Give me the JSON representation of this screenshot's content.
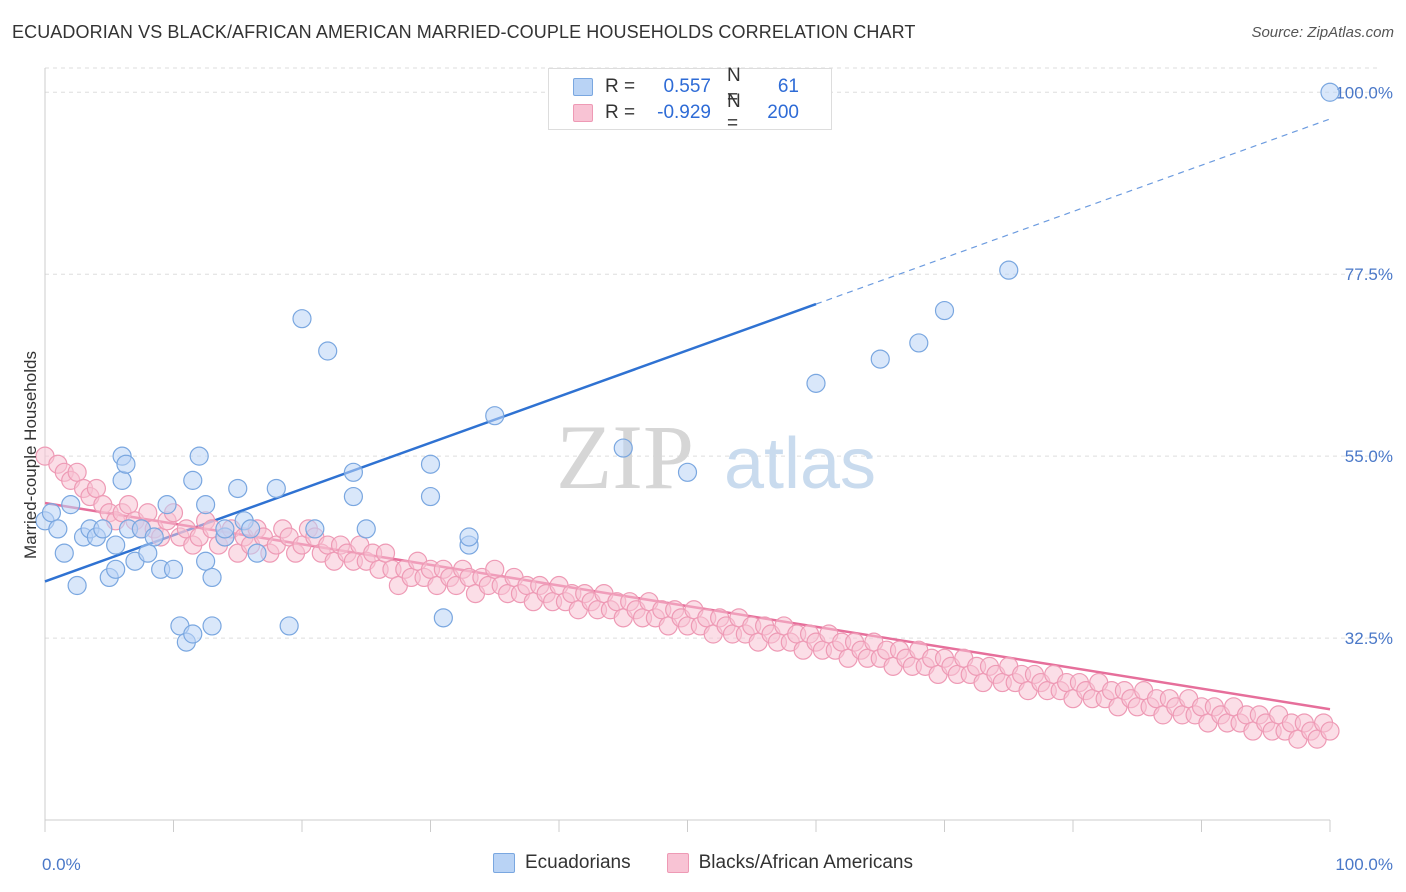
{
  "title": "ECUADORIAN VS BLACK/AFRICAN AMERICAN MARRIED-COUPLE HOUSEHOLDS CORRELATION CHART",
  "source": "Source: ZipAtlas.com",
  "watermark": {
    "zip": "ZIP",
    "atlas": "atlas"
  },
  "colors": {
    "blue_fill": "#b9d3f5",
    "blue_stroke": "#7aa7e0",
    "blue_line": "#2f72d2",
    "pink_fill": "#f8c3d4",
    "pink_stroke": "#ee9ab5",
    "pink_line": "#e66f9b",
    "grid": "#dddddd",
    "tick_text": "#4a78c8"
  },
  "legend": {
    "rows": [
      {
        "r_label": "R =",
        "r_value": "0.557",
        "n_label": "N =",
        "n_value": "61"
      },
      {
        "r_label": "R =",
        "r_value": "-0.929",
        "n_label": "N =",
        "n_value": "200"
      }
    ]
  },
  "bottom_legend": [
    "Ecuadorians",
    "Blacks/African Americans"
  ],
  "chart_data": {
    "type": "scatter",
    "title": "ECUADORIAN VS BLACK/AFRICAN AMERICAN MARRIED-COUPLE HOUSEHOLDS CORRELATION CHART",
    "xlabel": "",
    "ylabel": "Married-couple Households",
    "xlim": [
      0,
      100
    ],
    "ylim": [
      10,
      103
    ],
    "y_ticks": [
      32.5,
      55.0,
      77.5,
      100.0
    ],
    "y_tick_labels": [
      "32.5%",
      "55.0%",
      "77.5%",
      "100.0%"
    ],
    "x_tick_labels": [
      "0.0%",
      "100.0%"
    ],
    "grid": true,
    "legend_position": "top-center",
    "series": [
      {
        "name": "Ecuadorians",
        "points": [
          [
            0,
            47
          ],
          [
            0.5,
            48
          ],
          [
            1,
            46
          ],
          [
            1.5,
            43
          ],
          [
            2,
            49
          ],
          [
            2.5,
            39
          ],
          [
            3,
            45
          ],
          [
            3.5,
            46
          ],
          [
            4,
            45
          ],
          [
            4.5,
            46
          ],
          [
            5,
            40
          ],
          [
            5.5,
            41
          ],
          [
            5.5,
            44
          ],
          [
            6,
            55
          ],
          [
            6,
            52
          ],
          [
            6.3,
            54
          ],
          [
            6.5,
            46
          ],
          [
            7,
            42
          ],
          [
            7.5,
            46
          ],
          [
            8,
            43
          ],
          [
            8.5,
            45
          ],
          [
            9,
            41
          ],
          [
            9.5,
            49
          ],
          [
            10,
            41
          ],
          [
            10.5,
            34
          ],
          [
            11,
            32
          ],
          [
            11.5,
            33
          ],
          [
            11.5,
            52
          ],
          [
            12,
            55
          ],
          [
            12.5,
            49
          ],
          [
            12.5,
            42
          ],
          [
            13,
            40
          ],
          [
            13,
            34
          ],
          [
            14,
            45
          ],
          [
            14,
            46
          ],
          [
            15,
            51
          ],
          [
            15.5,
            47
          ],
          [
            16,
            46
          ],
          [
            16.5,
            43
          ],
          [
            18,
            51
          ],
          [
            19,
            34
          ],
          [
            20,
            72
          ],
          [
            21,
            46
          ],
          [
            22,
            68
          ],
          [
            24,
            50
          ],
          [
            24,
            53
          ],
          [
            25,
            46
          ],
          [
            30,
            50
          ],
          [
            30,
            54
          ],
          [
            31,
            35
          ],
          [
            33,
            44
          ],
          [
            33,
            45
          ],
          [
            35,
            60
          ],
          [
            45,
            56
          ],
          [
            50,
            53
          ],
          [
            60,
            64
          ],
          [
            65,
            67
          ],
          [
            68,
            69
          ],
          [
            70,
            73
          ],
          [
            75,
            78
          ],
          [
            100,
            100
          ]
        ]
      },
      {
        "name": "Blacks/African Americans",
        "points": [
          [
            0,
            55
          ],
          [
            1,
            54
          ],
          [
            1.5,
            53
          ],
          [
            2,
            52
          ],
          [
            2.5,
            53
          ],
          [
            3,
            51
          ],
          [
            3.5,
            50
          ],
          [
            4,
            51
          ],
          [
            4.5,
            49
          ],
          [
            5,
            48
          ],
          [
            5.5,
            47
          ],
          [
            6,
            48
          ],
          [
            6.5,
            49
          ],
          [
            7,
            47
          ],
          [
            7.5,
            46
          ],
          [
            8,
            48
          ],
          [
            8.5,
            46
          ],
          [
            9,
            45
          ],
          [
            9.5,
            47
          ],
          [
            10,
            48
          ],
          [
            10.5,
            45
          ],
          [
            11,
            46
          ],
          [
            11.5,
            44
          ],
          [
            12,
            45
          ],
          [
            12.5,
            47
          ],
          [
            13,
            46
          ],
          [
            13.5,
            44
          ],
          [
            14,
            45
          ],
          [
            14.5,
            46
          ],
          [
            15,
            43
          ],
          [
            15.5,
            45
          ],
          [
            16,
            44
          ],
          [
            16.5,
            46
          ],
          [
            17,
            45
          ],
          [
            17.5,
            43
          ],
          [
            18,
            44
          ],
          [
            18.5,
            46
          ],
          [
            19,
            45
          ],
          [
            19.5,
            43
          ],
          [
            20,
            44
          ],
          [
            20.5,
            46
          ],
          [
            21,
            45
          ],
          [
            21.5,
            43
          ],
          [
            22,
            44
          ],
          [
            22.5,
            42
          ],
          [
            23,
            44
          ],
          [
            23.5,
            43
          ],
          [
            24,
            42
          ],
          [
            24.5,
            44
          ],
          [
            25,
            42
          ],
          [
            25.5,
            43
          ],
          [
            26,
            41
          ],
          [
            26.5,
            43
          ],
          [
            27,
            41
          ],
          [
            27.5,
            39
          ],
          [
            28,
            41
          ],
          [
            28.5,
            40
          ],
          [
            29,
            42
          ],
          [
            29.5,
            40
          ],
          [
            30,
            41
          ],
          [
            30.5,
            39
          ],
          [
            31,
            41
          ],
          [
            31.5,
            40
          ],
          [
            32,
            39
          ],
          [
            32.5,
            41
          ],
          [
            33,
            40
          ],
          [
            33.5,
            38
          ],
          [
            34,
            40
          ],
          [
            34.5,
            39
          ],
          [
            35,
            41
          ],
          [
            35.5,
            39
          ],
          [
            36,
            38
          ],
          [
            36.5,
            40
          ],
          [
            37,
            38
          ],
          [
            37.5,
            39
          ],
          [
            38,
            37
          ],
          [
            38.5,
            39
          ],
          [
            39,
            38
          ],
          [
            39.5,
            37
          ],
          [
            40,
            39
          ],
          [
            40.5,
            37
          ],
          [
            41,
            38
          ],
          [
            41.5,
            36
          ],
          [
            42,
            38
          ],
          [
            42.5,
            37
          ],
          [
            43,
            36
          ],
          [
            43.5,
            38
          ],
          [
            44,
            36
          ],
          [
            44.5,
            37
          ],
          [
            45,
            35
          ],
          [
            45.5,
            37
          ],
          [
            46,
            36
          ],
          [
            46.5,
            35
          ],
          [
            47,
            37
          ],
          [
            47.5,
            35
          ],
          [
            48,
            36
          ],
          [
            48.5,
            34
          ],
          [
            49,
            36
          ],
          [
            49.5,
            35
          ],
          [
            50,
            34
          ],
          [
            50.5,
            36
          ],
          [
            51,
            34
          ],
          [
            51.5,
            35
          ],
          [
            52,
            33
          ],
          [
            52.5,
            35
          ],
          [
            53,
            34
          ],
          [
            53.5,
            33
          ],
          [
            54,
            35
          ],
          [
            54.5,
            33
          ],
          [
            55,
            34
          ],
          [
            55.5,
            32
          ],
          [
            56,
            34
          ],
          [
            56.5,
            33
          ],
          [
            57,
            32
          ],
          [
            57.5,
            34
          ],
          [
            58,
            32
          ],
          [
            58.5,
            33
          ],
          [
            59,
            31
          ],
          [
            59.5,
            33
          ],
          [
            60,
            32
          ],
          [
            60.5,
            31
          ],
          [
            61,
            33
          ],
          [
            61.5,
            31
          ],
          [
            62,
            32
          ],
          [
            62.5,
            30
          ],
          [
            63,
            32
          ],
          [
            63.5,
            31
          ],
          [
            64,
            30
          ],
          [
            64.5,
            32
          ],
          [
            65,
            30
          ],
          [
            65.5,
            31
          ],
          [
            66,
            29
          ],
          [
            66.5,
            31
          ],
          [
            67,
            30
          ],
          [
            67.5,
            29
          ],
          [
            68,
            31
          ],
          [
            68.5,
            29
          ],
          [
            69,
            30
          ],
          [
            69.5,
            28
          ],
          [
            70,
            30
          ],
          [
            70.5,
            29
          ],
          [
            71,
            28
          ],
          [
            71.5,
            30
          ],
          [
            72,
            28
          ],
          [
            72.5,
            29
          ],
          [
            73,
            27
          ],
          [
            73.5,
            29
          ],
          [
            74,
            28
          ],
          [
            74.5,
            27
          ],
          [
            75,
            29
          ],
          [
            75.5,
            27
          ],
          [
            76,
            28
          ],
          [
            76.5,
            26
          ],
          [
            77,
            28
          ],
          [
            77.5,
            27
          ],
          [
            78,
            26
          ],
          [
            78.5,
            28
          ],
          [
            79,
            26
          ],
          [
            79.5,
            27
          ],
          [
            80,
            25
          ],
          [
            80.5,
            27
          ],
          [
            81,
            26
          ],
          [
            81.5,
            25
          ],
          [
            82,
            27
          ],
          [
            82.5,
            25
          ],
          [
            83,
            26
          ],
          [
            83.5,
            24
          ],
          [
            84,
            26
          ],
          [
            84.5,
            25
          ],
          [
            85,
            24
          ],
          [
            85.5,
            26
          ],
          [
            86,
            24
          ],
          [
            86.5,
            25
          ],
          [
            87,
            23
          ],
          [
            87.5,
            25
          ],
          [
            88,
            24
          ],
          [
            88.5,
            23
          ],
          [
            89,
            25
          ],
          [
            89.5,
            23
          ],
          [
            90,
            24
          ],
          [
            90.5,
            22
          ],
          [
            91,
            24
          ],
          [
            91.5,
            23
          ],
          [
            92,
            22
          ],
          [
            92.5,
            24
          ],
          [
            93,
            22
          ],
          [
            93.5,
            23
          ],
          [
            94,
            21
          ],
          [
            94.5,
            23
          ],
          [
            95,
            22
          ],
          [
            95.5,
            21
          ],
          [
            96,
            23
          ],
          [
            96.5,
            21
          ],
          [
            97,
            22
          ],
          [
            97.5,
            20
          ],
          [
            98,
            22
          ],
          [
            98.5,
            21
          ],
          [
            99,
            20
          ],
          [
            99.5,
            22
          ],
          [
            100,
            21
          ]
        ]
      }
    ],
    "trend_lines": [
      {
        "series": "Ecuadorians",
        "x": [
          0,
          60,
          100
        ],
        "y": [
          39.5,
          73.8,
          96.7
        ],
        "solid_until_x": 60
      },
      {
        "series": "Blacks/African Americans",
        "x": [
          0,
          100
        ],
        "y": [
          49.2,
          23.7
        ]
      }
    ]
  }
}
